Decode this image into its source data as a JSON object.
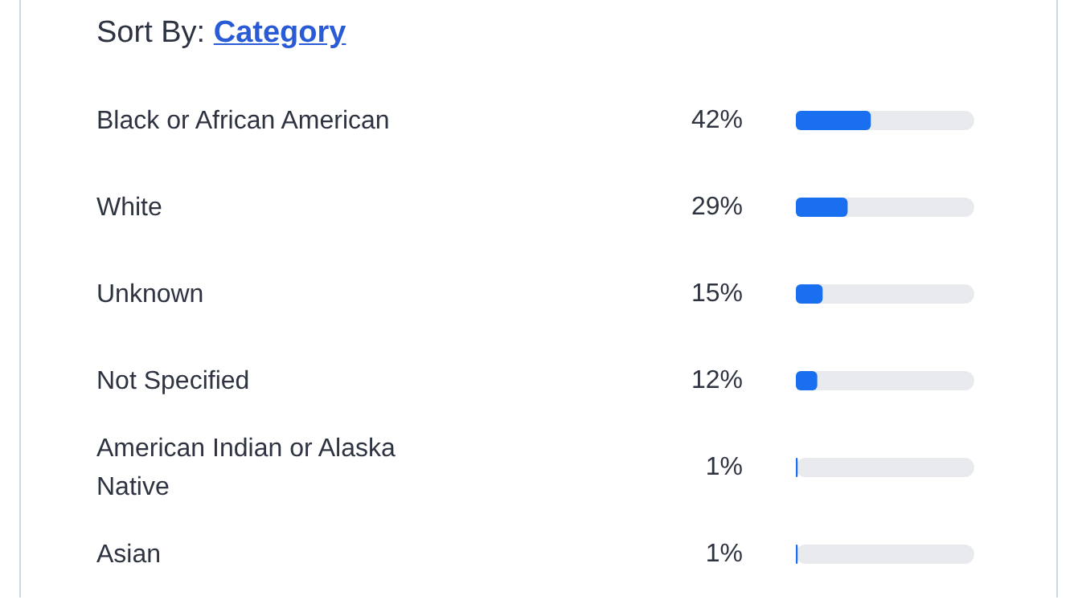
{
  "chart_data": {
    "type": "bar",
    "orientation": "horizontal",
    "title": "Sort By:",
    "subtitle": "Category",
    "categories": [
      "Black or African American",
      "White",
      "Unknown",
      "Not Specified",
      "American Indian or Alaska Native",
      "Asian"
    ],
    "values": [
      42,
      29,
      15,
      12,
      1,
      1
    ],
    "value_labels": [
      "42%",
      "29%",
      "15%",
      "12%",
      "1%",
      "1%"
    ],
    "color": "#1a6ff0",
    "xlim": [
      0,
      100
    ],
    "tick_labels": "y"
  }
}
